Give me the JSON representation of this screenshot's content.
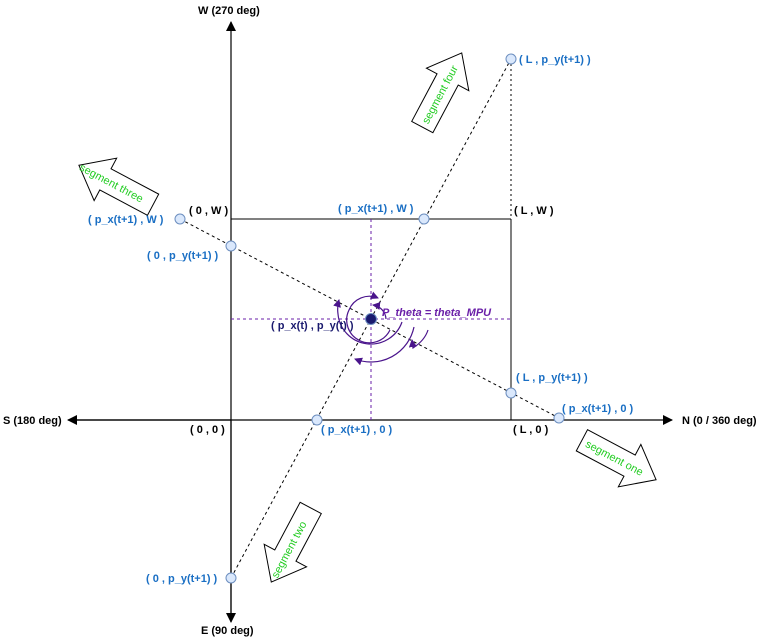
{
  "axes": {
    "west": "W (270 deg)",
    "east": "E (90 deg)",
    "south": "S (180 deg)",
    "north": "N (0 / 360 deg)"
  },
  "corners": {
    "origin": "( 0 , 0 )",
    "top_left": "( 0 , W )",
    "top_right": "( L , W )",
    "bottom_right": "( L , 0 )"
  },
  "current_point": {
    "label": "( p_x(t) , p_y(t) )",
    "angle_label": "P_theta = theta_MPU"
  },
  "intersections": {
    "top_mid": "( p_x(t+1) , W )",
    "top_far": "( L , p_y(t+1) )",
    "left_upper": "( p_x(t+1) , W )",
    "left_mid": "( 0 , p_y(t+1) )",
    "right_mid": "( L , p_y(t+1) )",
    "right_bottom": "( p_x(t+1) , 0 )",
    "bottom_mid": "( p_x(t+1) , 0 )",
    "bottom_left": "( 0 , p_y(t+1) )"
  },
  "segments": {
    "one": "segment one",
    "two": "segment two",
    "three": "segment three",
    "four": "segment four"
  },
  "colors": {
    "blue_label": "#1a6fc4",
    "navy_point": "#1a1a6e",
    "purple": "#6a1fa8",
    "green_text": "#22cc22",
    "node_fill": "#dae8fc",
    "node_stroke": "#6c8ebf"
  }
}
